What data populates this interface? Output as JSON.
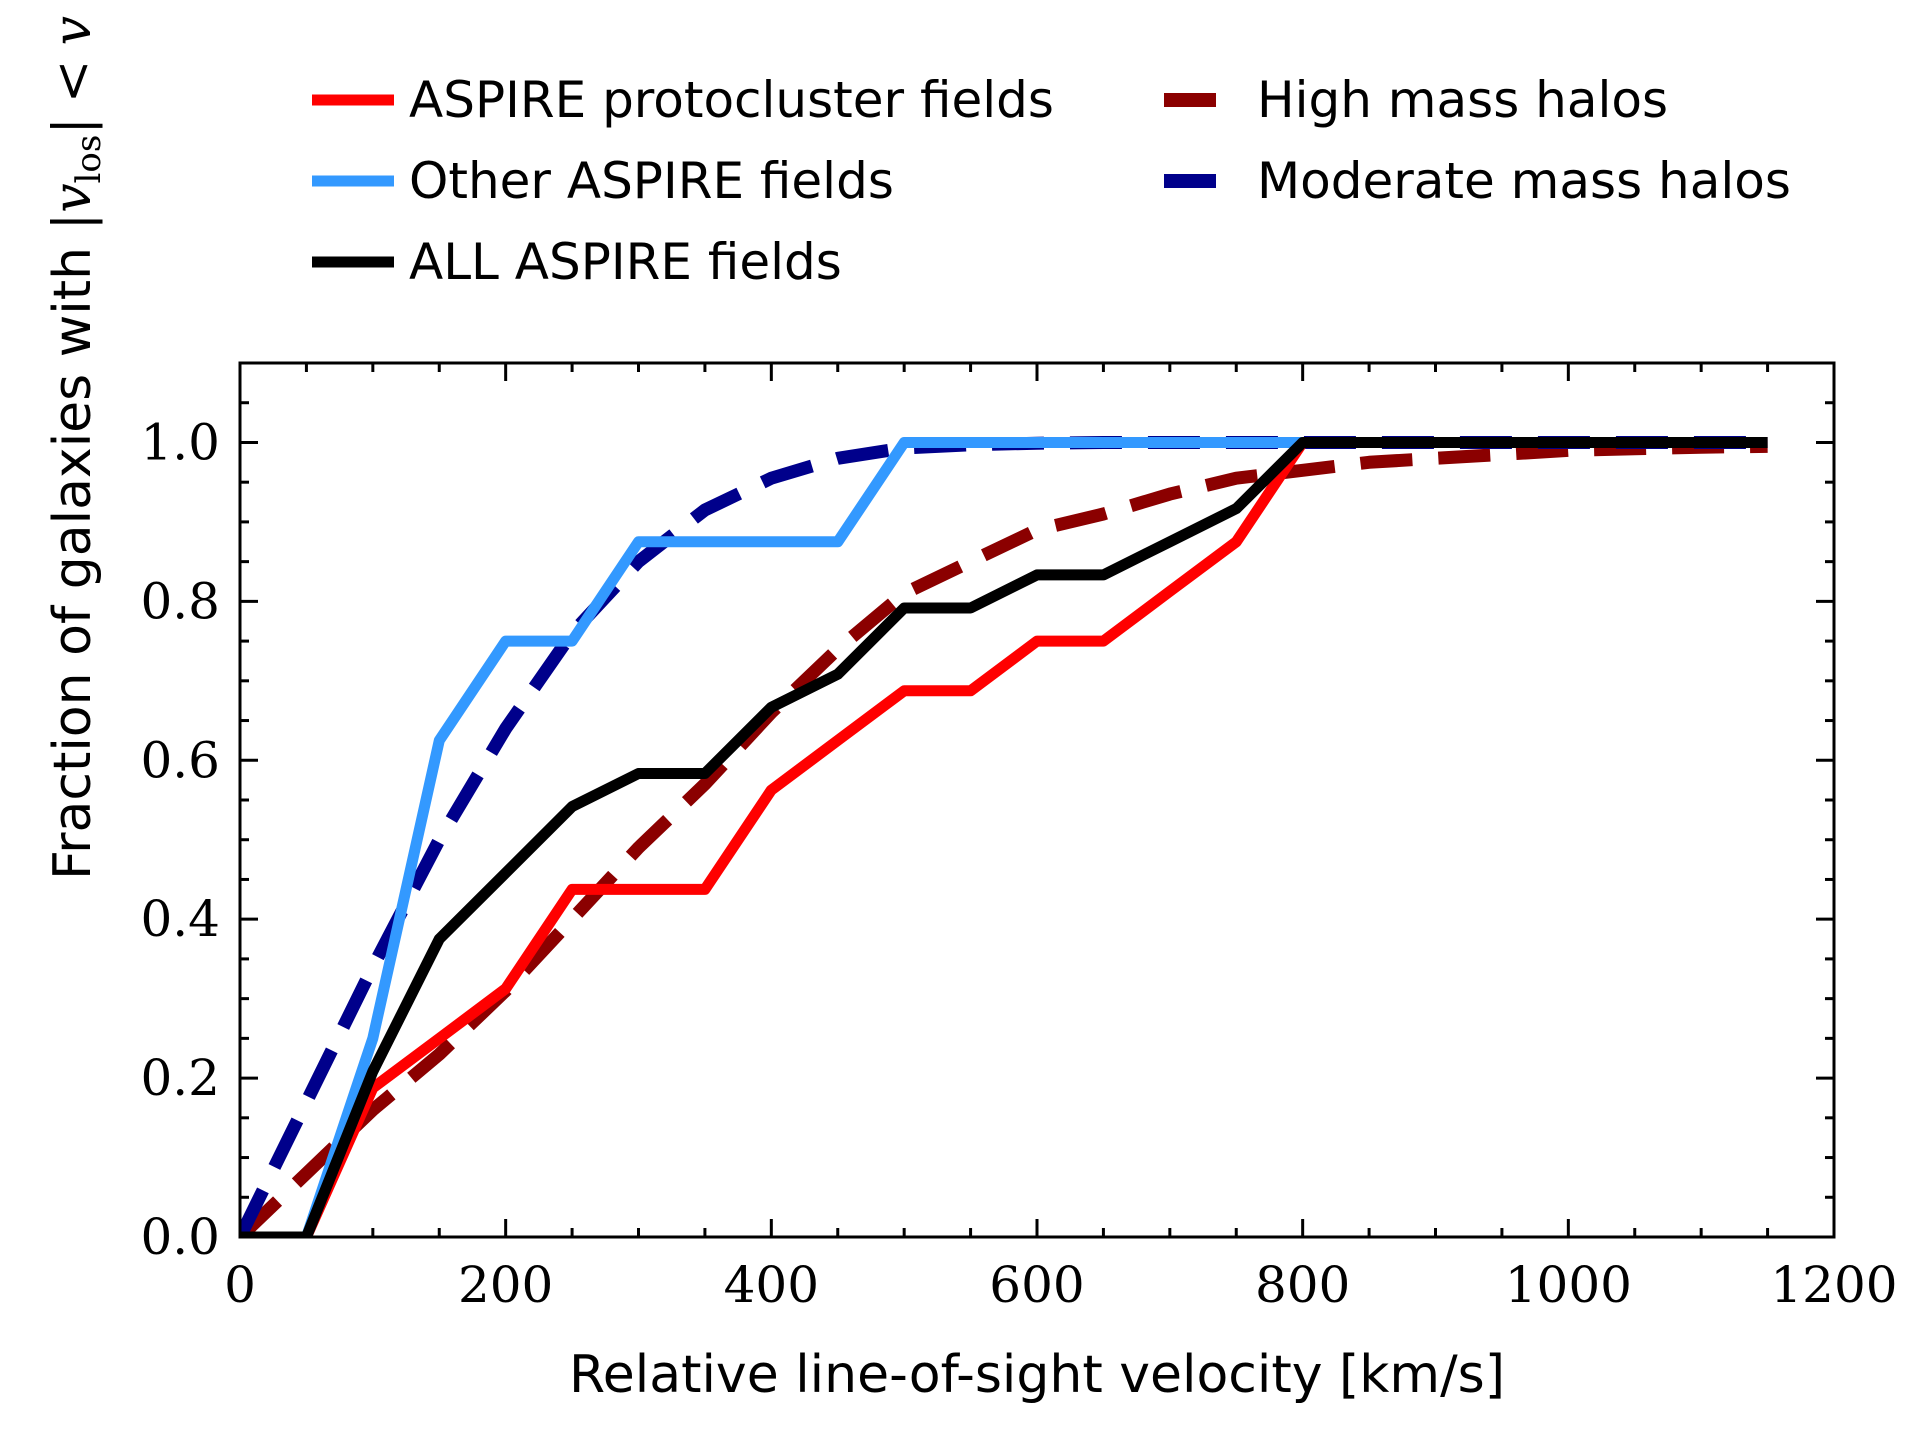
{
  "chart_data": {
    "type": "line",
    "title": "",
    "xlabel": "Relative line-of-sight velocity [km/s]",
    "ylabel_prefix": "Fraction of galaxies with ",
    "ylabel_math": "|v_los| < v",
    "ylabel_math_parts": {
      "bar_open": "|",
      "v": "v",
      "sub": "los",
      "bar_close": "|",
      "lt": "<",
      "v2": "v"
    },
    "xlim": [
      0,
      1200
    ],
    "ylim": [
      0,
      1.1
    ],
    "xticks": [
      0,
      200,
      400,
      600,
      800,
      1000,
      1200
    ],
    "xtick_labels": [
      "0",
      "200",
      "400",
      "600",
      "800",
      "1000",
      "1200"
    ],
    "yticks": [
      0.0,
      0.2,
      0.4,
      0.6,
      0.8,
      1.0
    ],
    "ytick_labels": [
      "0.0",
      "0.2",
      "0.4",
      "0.6",
      "0.8",
      "1.0"
    ],
    "legend_placement": "above plot, two columns",
    "series": [
      {
        "name": "ASPIRE protocluster fields",
        "style": "solid",
        "color": "#ff0000",
        "x": [
          0,
          50,
          100,
          150,
          200,
          250,
          300,
          350,
          400,
          450,
          500,
          550,
          600,
          650,
          700,
          750,
          800,
          850,
          900,
          950,
          1000,
          1050,
          1100,
          1150
        ],
        "y": [
          0,
          0,
          0.1875,
          0.25,
          0.3125,
          0.4375,
          0.4375,
          0.4375,
          0.5625,
          0.625,
          0.6875,
          0.6875,
          0.75,
          0.75,
          0.8125,
          0.875,
          1.0,
          1.0,
          1.0,
          1.0,
          1.0,
          1.0,
          1.0,
          1.0
        ]
      },
      {
        "name": "Other ASPIRE fields",
        "style": "solid",
        "color": "#3399ff",
        "x": [
          0,
          50,
          100,
          150,
          200,
          250,
          300,
          350,
          400,
          450,
          500,
          550,
          600,
          650,
          700,
          750,
          800,
          850,
          900,
          950,
          1000,
          1050,
          1100,
          1150
        ],
        "y": [
          0,
          0,
          0.25,
          0.625,
          0.75,
          0.75,
          0.875,
          0.875,
          0.875,
          0.875,
          1.0,
          1.0,
          1.0,
          1.0,
          1.0,
          1.0,
          1.0,
          1.0,
          1.0,
          1.0,
          1.0,
          1.0,
          1.0,
          1.0
        ]
      },
      {
        "name": "ALL ASPIRE fields",
        "style": "solid",
        "color": "#000000",
        "x": [
          0,
          50,
          100,
          150,
          200,
          250,
          300,
          350,
          400,
          450,
          500,
          550,
          600,
          650,
          700,
          750,
          800,
          850,
          900,
          950,
          1000,
          1050,
          1100,
          1150
        ],
        "y": [
          0,
          0,
          0.2083,
          0.375,
          0.4583,
          0.5417,
          0.5833,
          0.5833,
          0.6667,
          0.7083,
          0.7917,
          0.7917,
          0.8333,
          0.8333,
          0.875,
          0.9167,
          1.0,
          1.0,
          1.0,
          1.0,
          1.0,
          1.0,
          1.0,
          1.0
        ]
      },
      {
        "name": "High mass halos",
        "style": "dashed",
        "color": "#8b0000",
        "x": [
          0,
          50,
          100,
          150,
          200,
          250,
          300,
          350,
          400,
          450,
          500,
          550,
          600,
          650,
          700,
          750,
          800,
          850,
          900,
          950,
          1000,
          1050,
          1100,
          1150
        ],
        "y": [
          0,
          0.08,
          0.16,
          0.23,
          0.31,
          0.4,
          0.49,
          0.57,
          0.66,
          0.74,
          0.81,
          0.85,
          0.89,
          0.91,
          0.935,
          0.955,
          0.965,
          0.975,
          0.98,
          0.985,
          0.99,
          0.992,
          0.994,
          0.995
        ]
      },
      {
        "name": "Moderate mass halos",
        "style": "dashed",
        "color": "#00008b",
        "x": [
          0,
          50,
          100,
          150,
          200,
          250,
          300,
          350,
          400,
          450,
          500,
          550,
          600,
          650,
          700,
          750,
          800,
          850,
          900,
          950,
          1000,
          1050,
          1100,
          1150
        ],
        "y": [
          0,
          0.17,
          0.34,
          0.5,
          0.64,
          0.76,
          0.85,
          0.915,
          0.955,
          0.98,
          0.993,
          0.997,
          0.999,
          1.0,
          1.0,
          1.0,
          1.0,
          1.0,
          1.0,
          1.0,
          1.0,
          1.0,
          1.0,
          1.0
        ]
      }
    ],
    "legend_order": [
      0,
      1,
      2,
      3,
      4
    ]
  }
}
